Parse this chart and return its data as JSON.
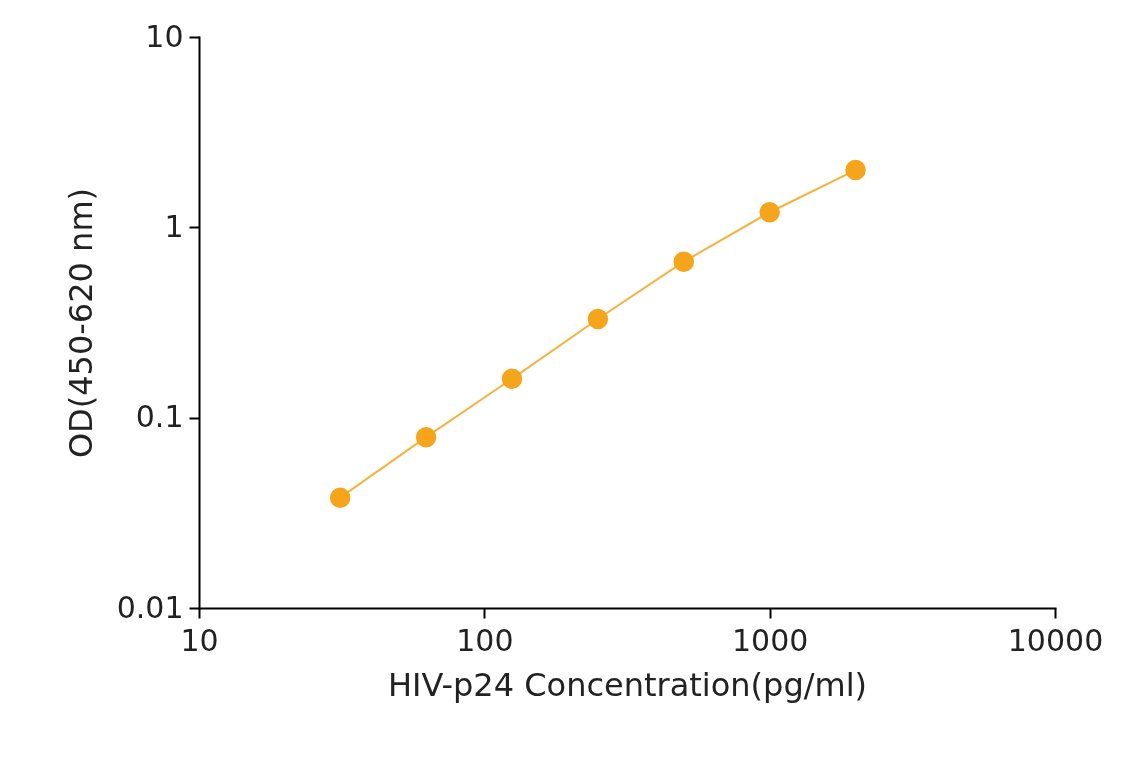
{
  "chart_data": {
    "type": "line",
    "xlabel": "HIV-p24 Concentration(pg/ml)",
    "ylabel": "OD(450-620 nm)",
    "log": "xy",
    "x": [
      31.25,
      62.5,
      125,
      250,
      500,
      1000,
      2000
    ],
    "series": [
      {
        "color": "#f4a51c",
        "values": [
          0.038,
          0.079,
          0.16,
          0.33,
          0.66,
          1.2,
          2.0
        ]
      }
    ],
    "xlim": [
      10,
      10000
    ],
    "xticks": [
      10,
      100,
      1000,
      10000
    ],
    "ylim": [
      0.01,
      10
    ],
    "yticks": [
      0.01,
      0.1,
      1,
      10
    ],
    "grid": false,
    "legend": false,
    "marker": "circle",
    "line_style": "solid"
  }
}
